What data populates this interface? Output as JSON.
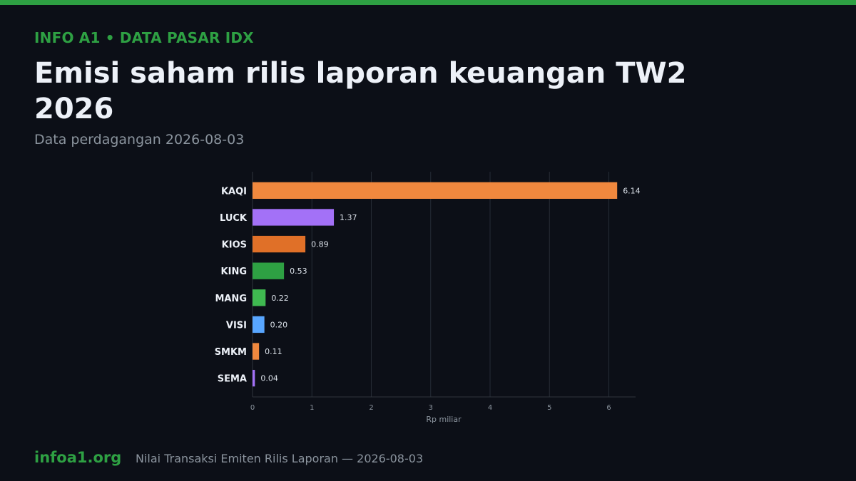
{
  "header": {
    "kicker": "INFO A1  •  DATA PASAR IDX",
    "title": "Emisi saham rilis laporan keuangan TW2 2026",
    "subtitle": "Data perdagangan 2026-08-03"
  },
  "footer": {
    "brand": "infoa1.org",
    "caption": "Nilai Transaksi Emiten Rilis Laporan — 2026-08-03"
  },
  "colors": {
    "accent": "#2ea043",
    "background": "#0c0f17"
  },
  "chart_data": {
    "type": "bar",
    "orientation": "horizontal",
    "categories": [
      "KAQI",
      "LUCK",
      "KIOS",
      "KING",
      "MANG",
      "VISI",
      "SMKM",
      "SEMA"
    ],
    "values": [
      6.14,
      1.37,
      0.89,
      0.53,
      0.22,
      0.2,
      0.11,
      0.04
    ],
    "value_labels": [
      "6.14",
      "1.37",
      "0.89",
      "0.53",
      "0.22",
      "0.20",
      "0.11",
      "0.04"
    ],
    "bar_colors": [
      "#f0883e",
      "#a371f7",
      "#e07028",
      "#2ea043",
      "#3fb950",
      "#58a6ff",
      "#f0883e",
      "#a371f7"
    ],
    "xlabel": "Rp miliar",
    "ylabel": "",
    "xlim": [
      0,
      6.45
    ],
    "xticks": [
      0,
      1,
      2,
      3,
      4,
      5,
      6
    ],
    "grid": true
  }
}
